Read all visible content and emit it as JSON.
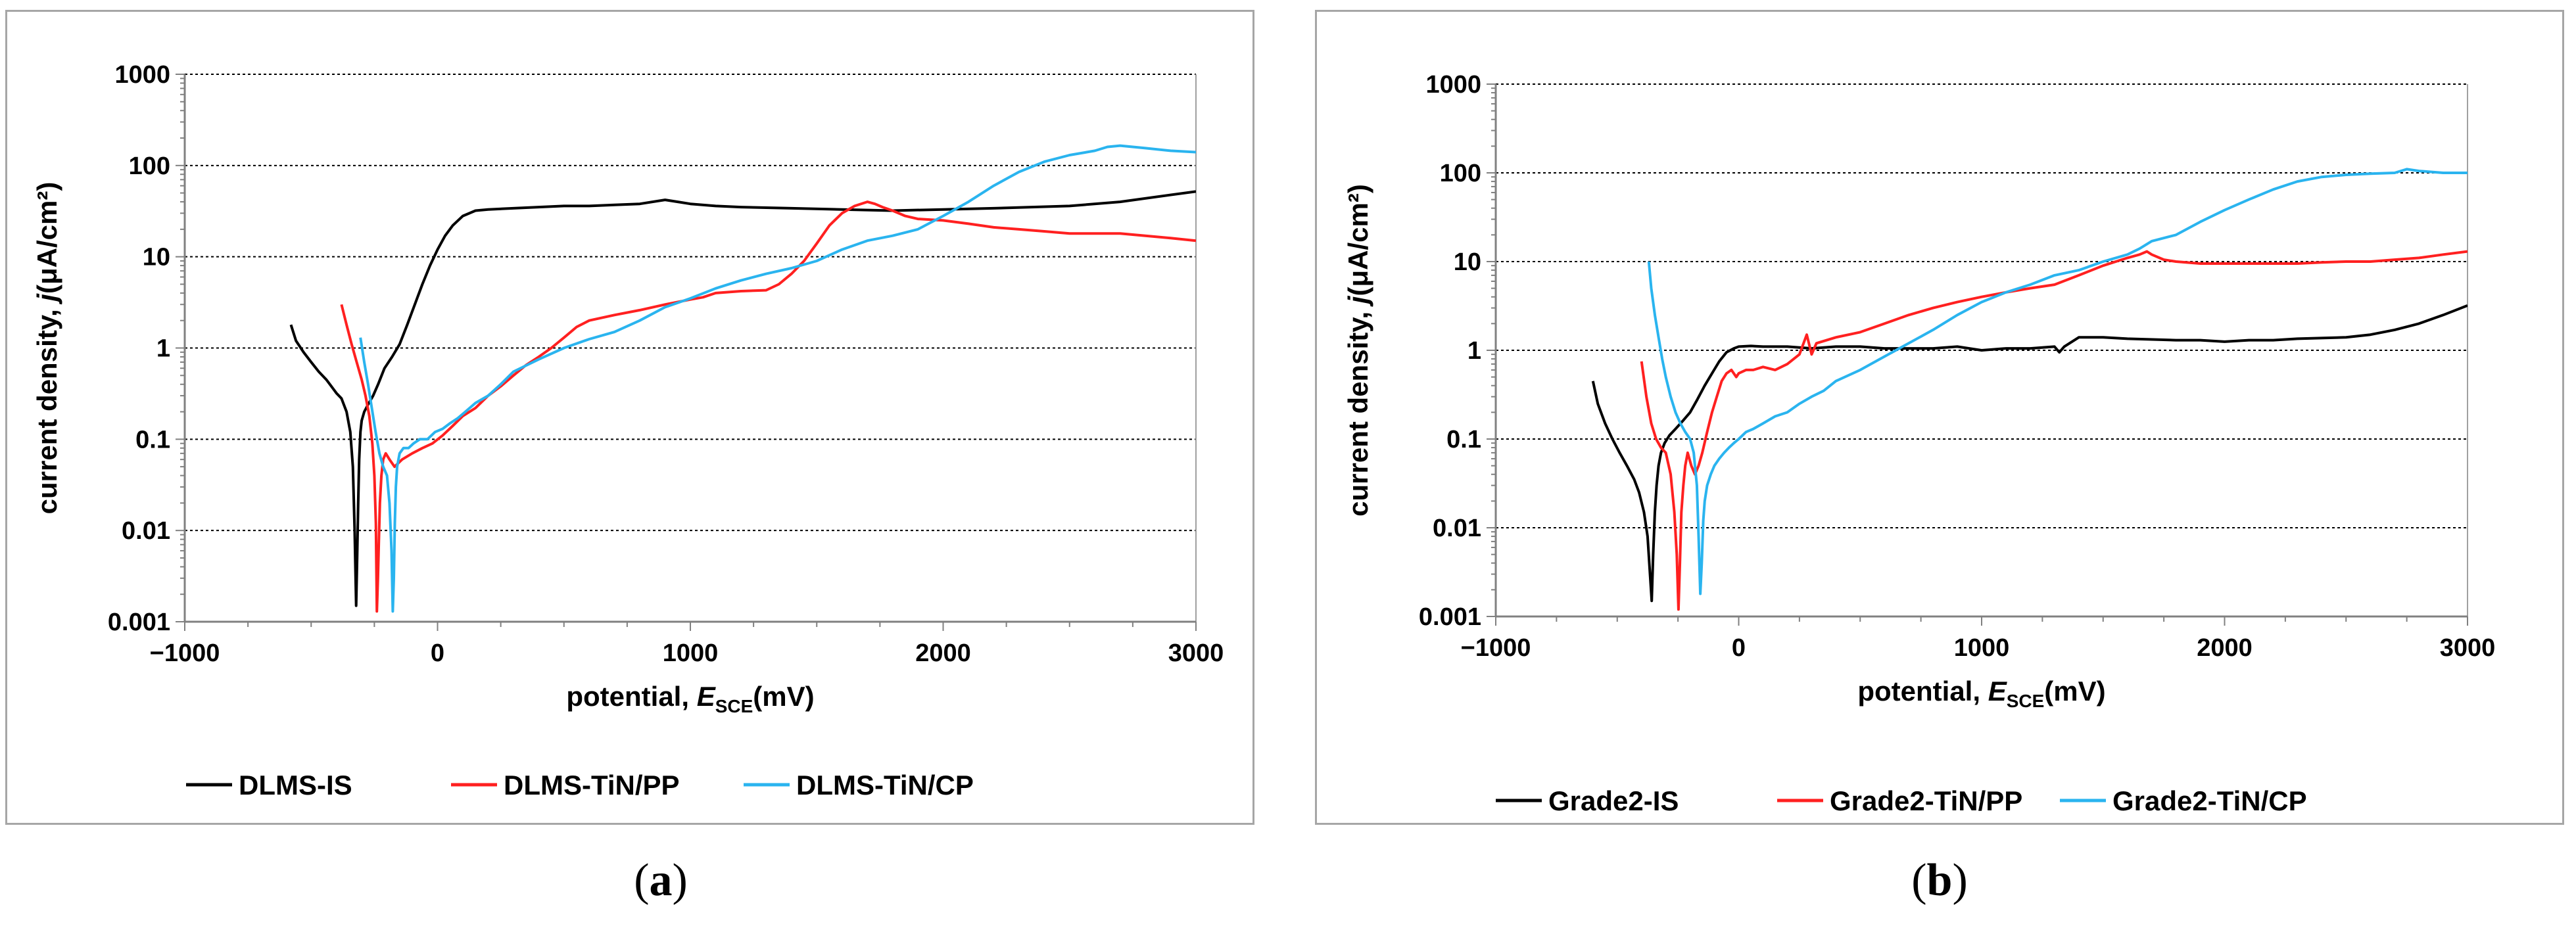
{
  "chart_data": [
    {
      "type": "line",
      "panel": "a",
      "caption": "a",
      "xlabel": "potential, ",
      "xlabel_var": "E",
      "xlabel_sub": "SCE",
      "xlabel_unit": "(mV)",
      "ylabel": "current density, ",
      "ylabel_var": "j",
      "ylabel_unit": "(μA/cm²)",
      "xlim": [
        -1000,
        3000
      ],
      "ylim": [
        0.001,
        1000
      ],
      "yscale": "log",
      "xticks": [
        "−1000",
        "0",
        "1000",
        "2000",
        "3000"
      ],
      "xtick_values": [
        -1000,
        0,
        1000,
        2000,
        3000
      ],
      "yticks": [
        "1000",
        "100",
        "10",
        "1",
        "0.1",
        "0.01",
        "0.001"
      ],
      "ytick_values": [
        1000,
        100,
        10,
        1,
        0.1,
        0.01,
        0.001
      ],
      "grid": "horizontal dashed",
      "legend": "bottom",
      "series": [
        {
          "name": "DLMS-IS",
          "color": "#000000",
          "x": [
            -580,
            -560,
            -530,
            -500,
            -470,
            -440,
            -420,
            -400,
            -380,
            -360,
            -345,
            -335,
            -328,
            -322,
            -318,
            -314,
            -310,
            -305,
            -300,
            -290,
            -275,
            -255,
            -235,
            -210,
            -180,
            -150,
            -120,
            -90,
            -60,
            -30,
            0,
            30,
            60,
            100,
            150,
            200,
            300,
            400,
            500,
            600,
            700,
            800,
            900,
            950,
            1000,
            1100,
            1200,
            1400,
            1600,
            1800,
            2000,
            2200,
            2500,
            2700,
            3000
          ],
          "values": [
            1.8,
            1.2,
            0.9,
            0.7,
            0.55,
            0.45,
            0.38,
            0.32,
            0.28,
            0.2,
            0.12,
            0.05,
            0.01,
            0.0015,
            0.005,
            0.02,
            0.06,
            0.12,
            0.16,
            0.2,
            0.24,
            0.3,
            0.4,
            0.6,
            0.8,
            1.1,
            1.8,
            3,
            5,
            8,
            12,
            17,
            22,
            28,
            32,
            33,
            34,
            35,
            36,
            36,
            37,
            38,
            42,
            40,
            38,
            36,
            35,
            34,
            33,
            32,
            33,
            34,
            36,
            40,
            52
          ]
        },
        {
          "name": "DLMS-TiN/PP",
          "color": "#ff2020",
          "x": [
            -380,
            -360,
            -340,
            -320,
            -300,
            -285,
            -270,
            -258,
            -250,
            -244,
            -240,
            -236,
            -232,
            -228,
            -222,
            -215,
            -205,
            -190,
            -170,
            -140,
            -100,
            -60,
            -20,
            20,
            60,
            100,
            150,
            200,
            250,
            300,
            350,
            400,
            450,
            500,
            550,
            600,
            700,
            800,
            900,
            1000,
            1050,
            1100,
            1200,
            1300,
            1350,
            1400,
            1450,
            1500,
            1550,
            1600,
            1650,
            1700,
            1730,
            1760,
            1800,
            1850,
            1900,
            2000,
            2100,
            2200,
            2300,
            2400,
            2500,
            2600,
            2700,
            2800,
            2900,
            3000
          ],
          "values": [
            3,
            1.8,
            1.1,
            0.7,
            0.45,
            0.3,
            0.18,
            0.09,
            0.04,
            0.012,
            0.0013,
            0.003,
            0.008,
            0.02,
            0.04,
            0.06,
            0.07,
            0.06,
            0.05,
            0.06,
            0.07,
            0.08,
            0.09,
            0.11,
            0.14,
            0.18,
            0.22,
            0.3,
            0.38,
            0.5,
            0.65,
            0.8,
            1.0,
            1.3,
            1.7,
            2.0,
            2.3,
            2.6,
            3.0,
            3.4,
            3.6,
            4.0,
            4.2,
            4.3,
            5.0,
            6.5,
            9,
            14,
            22,
            30,
            36,
            40,
            38,
            35,
            32,
            28,
            26,
            25,
            23,
            21,
            20,
            19,
            18,
            18,
            18,
            17,
            16,
            15
          ]
        },
        {
          "name": "DLMS-TiN/CP",
          "color": "#2ab4ef",
          "x": [
            -305,
            -290,
            -275,
            -260,
            -245,
            -230,
            -215,
            -200,
            -190,
            -182,
            -177,
            -173,
            -169,
            -165,
            -160,
            -150,
            -135,
            -115,
            -95,
            -70,
            -40,
            -10,
            20,
            50,
            80,
            110,
            150,
            200,
            250,
            300,
            400,
            500,
            600,
            700,
            800,
            900,
            1000,
            1100,
            1200,
            1300,
            1400,
            1500,
            1600,
            1700,
            1800,
            1900,
            2000,
            2100,
            2200,
            2300,
            2400,
            2500,
            2600,
            2650,
            2700,
            2800,
            2900,
            3000
          ],
          "values": [
            1.3,
            0.7,
            0.4,
            0.22,
            0.12,
            0.07,
            0.05,
            0.04,
            0.02,
            0.006,
            0.0013,
            0.003,
            0.012,
            0.03,
            0.05,
            0.07,
            0.08,
            0.08,
            0.09,
            0.1,
            0.1,
            0.12,
            0.13,
            0.15,
            0.17,
            0.2,
            0.25,
            0.3,
            0.4,
            0.55,
            0.75,
            1.0,
            1.25,
            1.5,
            2.0,
            2.8,
            3.5,
            4.5,
            5.5,
            6.5,
            7.5,
            9,
            12,
            15,
            17,
            20,
            28,
            40,
            60,
            85,
            110,
            130,
            145,
            160,
            165,
            155,
            145,
            140
          ]
        }
      ]
    },
    {
      "type": "line",
      "panel": "b",
      "caption": "b",
      "xlabel": "potential, ",
      "xlabel_var": "E",
      "xlabel_sub": "SCE",
      "xlabel_unit": "(mV)",
      "ylabel": "current density, ",
      "ylabel_var": "j",
      "ylabel_unit": "(μA/cm²)",
      "xlim": [
        -1000,
        3000
      ],
      "ylim": [
        0.001,
        1000
      ],
      "yscale": "log",
      "xticks": [
        "−1000",
        "0",
        "1000",
        "2000",
        "3000"
      ],
      "xtick_values": [
        -1000,
        0,
        1000,
        2000,
        3000
      ],
      "yticks": [
        "1000",
        "100",
        "10",
        "1",
        "0.1",
        "0.01",
        "0.001"
      ],
      "ytick_values": [
        1000,
        100,
        10,
        1,
        0.1,
        0.01,
        0.001
      ],
      "grid": "horizontal dashed",
      "legend": "bottom",
      "series": [
        {
          "name": "Grade2-IS",
          "color": "#000000",
          "x": [
            -600,
            -580,
            -550,
            -520,
            -490,
            -460,
            -430,
            -410,
            -390,
            -375,
            -365,
            -358,
            -352,
            -345,
            -338,
            -330,
            -320,
            -305,
            -285,
            -260,
            -230,
            -200,
            -170,
            -140,
            -110,
            -80,
            -50,
            -20,
            0,
            50,
            100,
            200,
            300,
            400,
            500,
            600,
            700,
            800,
            900,
            1000,
            1100,
            1200,
            1300,
            1320,
            1340,
            1400,
            1500,
            1600,
            1800,
            1900,
            2000,
            2100,
            2200,
            2300,
            2500,
            2600,
            2700,
            2800,
            2900,
            3000
          ],
          "values": [
            0.45,
            0.25,
            0.15,
            0.1,
            0.07,
            0.05,
            0.035,
            0.025,
            0.015,
            0.008,
            0.003,
            0.0015,
            0.005,
            0.015,
            0.03,
            0.05,
            0.07,
            0.09,
            0.11,
            0.13,
            0.16,
            0.2,
            0.28,
            0.4,
            0.55,
            0.75,
            0.95,
            1.05,
            1.1,
            1.12,
            1.1,
            1.1,
            1.05,
            1.1,
            1.1,
            1.05,
            1.05,
            1.05,
            1.1,
            1.0,
            1.05,
            1.05,
            1.1,
            0.95,
            1.1,
            1.4,
            1.4,
            1.35,
            1.3,
            1.3,
            1.25,
            1.3,
            1.3,
            1.35,
            1.4,
            1.5,
            1.7,
            2.0,
            2.5,
            3.2
          ]
        },
        {
          "name": "Grade2-TiN/PP",
          "color": "#ff2020",
          "x": [
            -400,
            -380,
            -360,
            -340,
            -320,
            -300,
            -280,
            -265,
            -255,
            -248,
            -242,
            -236,
            -228,
            -220,
            -210,
            -195,
            -180,
            -165,
            -150,
            -130,
            -110,
            -90,
            -70,
            -50,
            -30,
            -10,
            0,
            30,
            60,
            100,
            150,
            200,
            250,
            280,
            300,
            320,
            400,
            500,
            600,
            700,
            800,
            900,
            1000,
            1100,
            1200,
            1300,
            1400,
            1500,
            1600,
            1650,
            1680,
            1700,
            1750,
            1800,
            1900,
            2000,
            2100,
            2200,
            2300,
            2400,
            2500,
            2600,
            2700,
            2800,
            2900,
            3000
          ],
          "values": [
            0.75,
            0.3,
            0.15,
            0.1,
            0.08,
            0.07,
            0.04,
            0.015,
            0.005,
            0.0012,
            0.004,
            0.015,
            0.03,
            0.05,
            0.07,
            0.05,
            0.04,
            0.05,
            0.07,
            0.12,
            0.2,
            0.3,
            0.45,
            0.55,
            0.6,
            0.5,
            0.55,
            0.6,
            0.6,
            0.65,
            0.6,
            0.7,
            0.9,
            1.5,
            0.9,
            1.2,
            1.4,
            1.6,
            2.0,
            2.5,
            3.0,
            3.5,
            4.0,
            4.5,
            5.0,
            5.5,
            7,
            9,
            11,
            12,
            13,
            12,
            10.5,
            10,
            9.5,
            9.5,
            9.5,
            9.5,
            9.5,
            9.8,
            10,
            10,
            10.5,
            11,
            12,
            13
          ]
        },
        {
          "name": "Grade2-TiN/CP",
          "color": "#2ab4ef",
          "x": [
            -370,
            -360,
            -345,
            -330,
            -315,
            -300,
            -280,
            -260,
            -240,
            -220,
            -200,
            -185,
            -172,
            -165,
            -158,
            -152,
            -146,
            -140,
            -130,
            -115,
            -100,
            -80,
            -60,
            -40,
            -20,
            0,
            30,
            60,
            100,
            150,
            200,
            250,
            300,
            350,
            400,
            500,
            600,
            700,
            800,
            900,
            1000,
            1100,
            1200,
            1300,
            1400,
            1500,
            1600,
            1650,
            1700,
            1800,
            1900,
            2000,
            2100,
            2200,
            2300,
            2400,
            2500,
            2600,
            2700,
            2750,
            2800,
            2900,
            3000
          ],
          "values": [
            10,
            5,
            2.5,
            1.4,
            0.8,
            0.5,
            0.3,
            0.2,
            0.15,
            0.12,
            0.1,
            0.07,
            0.03,
            0.008,
            0.0018,
            0.004,
            0.012,
            0.02,
            0.03,
            0.04,
            0.05,
            0.06,
            0.07,
            0.08,
            0.09,
            0.1,
            0.12,
            0.13,
            0.15,
            0.18,
            0.2,
            0.25,
            0.3,
            0.35,
            0.45,
            0.6,
            0.85,
            1.2,
            1.7,
            2.5,
            3.5,
            4.5,
            5.5,
            7,
            8,
            10,
            12,
            14,
            17,
            20,
            28,
            38,
            50,
            65,
            80,
            90,
            95,
            98,
            100,
            110,
            105,
            100,
            100
          ]
        }
      ]
    }
  ]
}
